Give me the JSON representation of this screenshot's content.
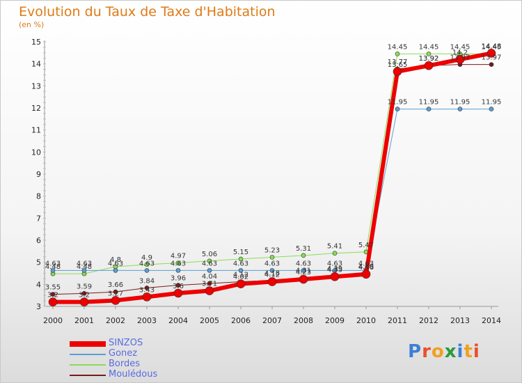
{
  "title": "Evolution du Taux de Taxe d'Habitation",
  "unit": "(en %)",
  "logo": {
    "text": "Proxiti",
    "colors": [
      "#3d7fd6",
      "#e8502a",
      "#f0a020",
      "#2a9a3a",
      "#3d7fd6",
      "#f0a020",
      "#e8502a"
    ]
  },
  "chart_data": {
    "type": "line",
    "x": [
      2000,
      2001,
      2002,
      2003,
      2004,
      2005,
      2006,
      2007,
      2008,
      2009,
      2010,
      2011,
      2012,
      2013,
      2014
    ],
    "ylim": [
      3,
      15
    ],
    "yticks": [
      3,
      4,
      5,
      6,
      7,
      8,
      9,
      10,
      11,
      12,
      13,
      14,
      15
    ],
    "grid": false,
    "legend_position": "bottom-left",
    "series": [
      {
        "name": "SINZOS",
        "color": "#ee0000",
        "width": 6,
        "marker": 6,
        "values": [
          3.2,
          3.2,
          3.27,
          3.43,
          3.6,
          3.71,
          4.02,
          4.12,
          4.23,
          4.35,
          4.46,
          13.65,
          13.92,
          14.2,
          14.48
        ],
        "labels": [
          "3.2",
          "3.2",
          "3.27",
          "3.43",
          "3.6",
          "3.71",
          "4.02",
          "4.12",
          "4.23",
          "4.35",
          "4.46",
          "13.65",
          "13.92",
          "14.2",
          "14.48"
        ]
      },
      {
        "name": "Gonez",
        "color": "#5a9fd4",
        "width": 1,
        "marker": 3,
        "values": [
          4.63,
          4.63,
          4.63,
          4.63,
          4.63,
          4.63,
          4.63,
          4.63,
          4.63,
          4.63,
          4.63,
          11.95,
          11.95,
          11.95,
          11.95
        ],
        "labels": [
          "4.63",
          "4.63",
          "4.63",
          "4.63",
          "4.63",
          "4.63",
          "4.63",
          "4.63",
          "4.63",
          "4.63",
          "4.63",
          "11.95",
          "11.95",
          "11.95",
          "11.95"
        ]
      },
      {
        "name": "Bordes",
        "color": "#88dd55",
        "width": 1,
        "marker": 3,
        "values": [
          4.48,
          4.48,
          4.8,
          4.9,
          4.97,
          5.06,
          5.15,
          5.23,
          5.31,
          5.41,
          5.47,
          14.45,
          14.45,
          14.45,
          14.45
        ],
        "labels": [
          "4.48",
          "4.48",
          "4.8",
          "4.9",
          "4.97",
          "5.06",
          "5.15",
          "5.23",
          "5.31",
          "5.41",
          "5.47",
          "14.45",
          "14.45",
          "14.45",
          "14.45"
        ]
      },
      {
        "name": "Moulédous",
        "color": "#7a1a1a",
        "width": 1,
        "marker": 3,
        "values": [
          3.55,
          3.59,
          3.66,
          3.84,
          3.96,
          4.04,
          4.12,
          4.18,
          4.31,
          4.39,
          4.49,
          13.77,
          13.92,
          13.97,
          13.97
        ],
        "labels": [
          "3.55",
          "3.59",
          "3.66",
          "3.84",
          "3.96",
          "4.04",
          "4.12",
          "4.18",
          "4.31",
          "4.39",
          "4.49",
          "13.77",
          "13.92",
          "13.97",
          "13.97"
        ]
      }
    ]
  }
}
